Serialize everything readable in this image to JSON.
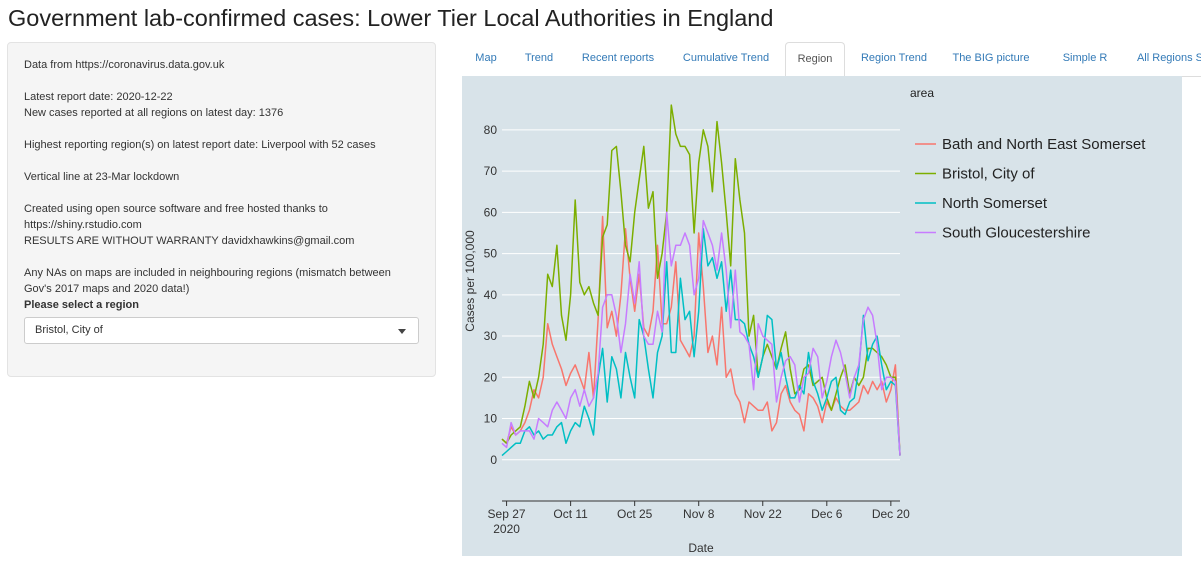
{
  "page": {
    "title": "Government lab-confirmed cases: Lower Tier Local Authorities in England"
  },
  "sidebar": {
    "data_source": "Data from https://coronavirus.data.gov.uk",
    "latest_report": "Latest report date: 2020-12-22",
    "new_cases": "New cases reported at all regions on latest day: 1376",
    "highest_region": "Highest reporting region(s) on latest report date: Liverpool with 52 cases",
    "lockdown_line": "Vertical line at 23-Mar lockdown",
    "credits_1": "Created using open source software and free hosted thanks to",
    "credits_2": "https://shiny.rstudio.com",
    "credits_3": "RESULTS ARE WITHOUT WARRANTY davidxhawkins@gmail.com",
    "na_note_1": "Any NAs on maps are included in neighbouring regions (mismatch between",
    "na_note_2": "Gov's 2017 maps and 2020 data!)",
    "select_label": "Please select a region",
    "select_value": "Bristol, City of"
  },
  "tabs": [
    {
      "label": "Map"
    },
    {
      "label": "Trend"
    },
    {
      "label": "Recent reports"
    },
    {
      "label": "Cumulative Trend"
    },
    {
      "label": "Region",
      "active": true
    },
    {
      "label": "Region Trend"
    },
    {
      "label": "The BIG picture"
    },
    {
      "label": "Simple R"
    },
    {
      "label": "All Regions S"
    }
  ],
  "icons": {
    "dropdown": "chevron-down-icon"
  },
  "chart_data": {
    "type": "line",
    "xlabel": "Date",
    "ylabel": "Cases per 100,000",
    "legend_title": "area",
    "legend_position": "right",
    "grid": true,
    "ylim": [
      -10,
      87
    ],
    "xlim": [
      "2020-09-26",
      "2020-12-22"
    ],
    "yticks": [
      0,
      10,
      20,
      30,
      40,
      50,
      60,
      70,
      80
    ],
    "xticks": [
      {
        "date": "2020-09-27",
        "label": "Sep 27",
        "sublabel": "2020"
      },
      {
        "date": "2020-10-11",
        "label": "Oct 11"
      },
      {
        "date": "2020-10-25",
        "label": "Oct 25"
      },
      {
        "date": "2020-11-08",
        "label": "Nov 8"
      },
      {
        "date": "2020-11-22",
        "label": "Nov 22"
      },
      {
        "date": "2020-12-06",
        "label": "Dec 6"
      },
      {
        "date": "2020-12-20",
        "label": "Dec 20"
      }
    ],
    "x": [
      "2020-09-26",
      "2020-09-27",
      "2020-09-28",
      "2020-09-29",
      "2020-09-30",
      "2020-10-01",
      "2020-10-02",
      "2020-10-03",
      "2020-10-04",
      "2020-10-05",
      "2020-10-06",
      "2020-10-07",
      "2020-10-08",
      "2020-10-09",
      "2020-10-10",
      "2020-10-11",
      "2020-10-12",
      "2020-10-13",
      "2020-10-14",
      "2020-10-15",
      "2020-10-16",
      "2020-10-17",
      "2020-10-18",
      "2020-10-19",
      "2020-10-20",
      "2020-10-21",
      "2020-10-22",
      "2020-10-23",
      "2020-10-24",
      "2020-10-25",
      "2020-10-26",
      "2020-10-27",
      "2020-10-28",
      "2020-10-29",
      "2020-10-30",
      "2020-10-31",
      "2020-11-01",
      "2020-11-02",
      "2020-11-03",
      "2020-11-04",
      "2020-11-05",
      "2020-11-06",
      "2020-11-07",
      "2020-11-08",
      "2020-11-09",
      "2020-11-10",
      "2020-11-11",
      "2020-11-12",
      "2020-11-13",
      "2020-11-14",
      "2020-11-15",
      "2020-11-16",
      "2020-11-17",
      "2020-11-18",
      "2020-11-19",
      "2020-11-20",
      "2020-11-21",
      "2020-11-22",
      "2020-11-23",
      "2020-11-24",
      "2020-11-25",
      "2020-11-26",
      "2020-11-27",
      "2020-11-28",
      "2020-11-29",
      "2020-11-30",
      "2020-12-01",
      "2020-12-02",
      "2020-12-03",
      "2020-12-04",
      "2020-12-05",
      "2020-12-06",
      "2020-12-07",
      "2020-12-08",
      "2020-12-09",
      "2020-12-10",
      "2020-12-11",
      "2020-12-12",
      "2020-12-13",
      "2020-12-14",
      "2020-12-15",
      "2020-12-16",
      "2020-12-17",
      "2020-12-18",
      "2020-12-19",
      "2020-12-20",
      "2020-12-21",
      "2020-12-22"
    ],
    "series": [
      {
        "name": "Bath and North East Somerset",
        "color": "#f8766d",
        "values": [
          5,
          4,
          8,
          6,
          7,
          9,
          12,
          17,
          15,
          20,
          33,
          28,
          25,
          22,
          18,
          21,
          23,
          20,
          17,
          26,
          15,
          34,
          59,
          32,
          36,
          30,
          40,
          56,
          44,
          36,
          45,
          32,
          30,
          36,
          52,
          33,
          33,
          37,
          48,
          29,
          27,
          25,
          30,
          55,
          42,
          26,
          30,
          23,
          37,
          20,
          22,
          16,
          14,
          9,
          14,
          13,
          12,
          12,
          14,
          7,
          9,
          16,
          18,
          14,
          12,
          11,
          7,
          16,
          15,
          13,
          9,
          14,
          12,
          15,
          13,
          12,
          12,
          13,
          14,
          18,
          16,
          19,
          17,
          19,
          14,
          17,
          23,
          1
        ]
      },
      {
        "name": "Bristol, City of",
        "color": "#7cae00",
        "values": [
          5,
          4,
          6,
          7,
          8,
          13,
          19,
          15,
          20,
          28,
          45,
          42,
          52,
          35,
          29,
          40,
          63,
          43,
          40,
          42,
          38,
          35,
          54,
          57,
          75,
          76,
          65,
          52,
          48,
          60,
          68,
          76,
          61,
          65,
          44,
          50,
          60,
          86,
          79,
          76,
          76,
          74,
          55,
          72,
          80,
          76,
          65,
          82,
          72,
          60,
          47,
          73,
          63,
          55,
          30,
          35,
          20,
          25,
          28,
          25,
          22,
          27,
          31,
          22,
          16,
          17,
          22,
          23,
          18,
          19,
          20,
          15,
          12,
          16,
          20,
          23,
          16,
          20,
          18,
          20,
          27,
          27,
          26,
          25,
          23,
          20,
          20,
          1
        ]
      },
      {
        "name": "North Somerset",
        "color": "#00bfc4",
        "values": [
          1,
          2,
          3,
          4,
          4,
          7,
          8,
          6,
          7,
          5,
          6,
          6,
          8,
          9,
          4,
          7,
          9,
          8,
          13,
          10,
          6,
          20,
          27,
          14,
          25,
          22,
          15,
          26,
          20,
          15,
          34,
          30,
          22,
          15,
          26,
          30,
          48,
          26,
          26,
          44,
          34,
          36,
          25,
          36,
          56,
          47,
          49,
          44,
          48,
          36,
          46,
          34,
          34,
          33,
          28,
          25,
          20,
          25,
          35,
          34,
          22,
          26,
          20,
          15,
          15,
          18,
          16,
          26,
          19,
          16,
          12,
          15,
          19,
          20,
          12,
          11,
          14,
          15,
          22,
          35,
          24,
          28,
          30,
          23,
          17,
          19,
          18,
          1
        ]
      },
      {
        "name": "South Gloucestershire",
        "color": "#c77cff",
        "values": [
          4,
          3,
          9,
          6,
          7,
          7,
          7,
          5,
          10,
          9,
          8,
          12,
          14,
          12,
          10,
          15,
          17,
          13,
          17,
          13,
          15,
          21,
          37,
          40,
          40,
          35,
          26,
          33,
          45,
          38,
          48,
          30,
          28,
          28,
          36,
          31,
          60,
          47,
          52,
          52,
          55,
          52,
          40,
          44,
          58,
          55,
          52,
          46,
          55,
          46,
          32,
          46,
          31,
          30,
          28,
          17,
          33,
          30,
          29,
          28,
          14,
          20,
          24,
          25,
          23,
          14,
          20,
          21,
          27,
          25,
          15,
          19,
          25,
          29,
          26,
          21,
          15,
          20,
          23,
          34,
          37,
          35,
          28,
          17,
          20,
          20,
          19,
          1
        ]
      }
    ]
  }
}
